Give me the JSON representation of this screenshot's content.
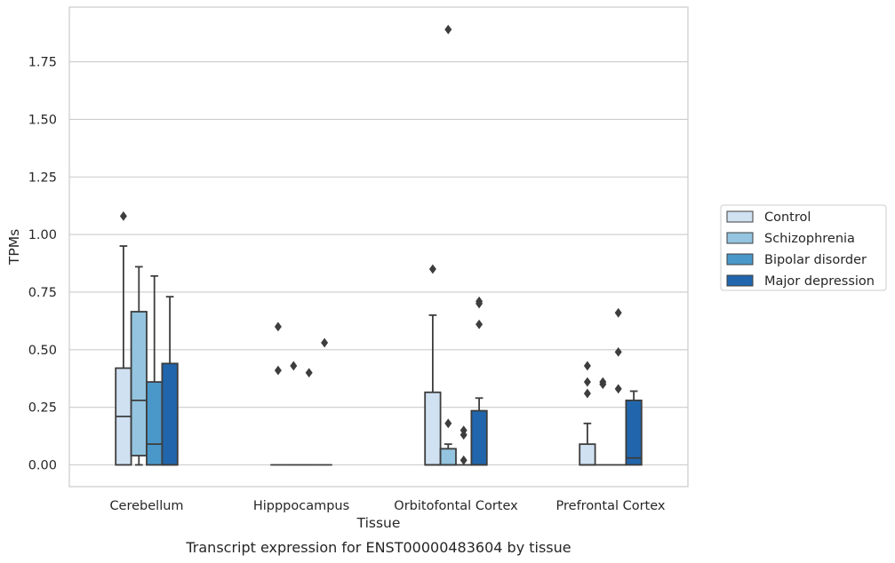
{
  "chart_data": {
    "type": "boxplot",
    "xlabel": "Tissue",
    "ylabel": "TPMs",
    "caption": "Transcript expression for ENST00000483604 by tissue",
    "ylim": [
      -0.09,
      1.98
    ],
    "yticks": [
      0.0,
      0.25,
      0.5,
      0.75,
      1.0,
      1.25,
      1.5,
      1.75
    ],
    "ytick_labels": [
      "0.00",
      "0.25",
      "0.50",
      "0.75",
      "1.00",
      "1.25",
      "1.50",
      "1.75"
    ],
    "grid": "horizontal",
    "legend_position": "right-outside",
    "categories": [
      "Cerebellum",
      "Hipppocampus",
      "Orbitofontal Cortex",
      "Prefrontal Cortex"
    ],
    "series": [
      {
        "name": "Control",
        "color": "#d0e1f2",
        "boxes": [
          {
            "whislo": 0.0,
            "q1": 0.0,
            "med": 0.21,
            "q3": 0.42,
            "whishi": 0.95,
            "fliers": [
              1.08
            ]
          },
          {
            "whislo": 0.0,
            "q1": 0.0,
            "med": 0.0,
            "q3": 0.0,
            "whishi": 0.0,
            "fliers": [
              0.6,
              0.41
            ]
          },
          {
            "whislo": 0.0,
            "q1": 0.0,
            "med": 0.0,
            "q3": 0.315,
            "whishi": 0.65,
            "fliers": [
              0.85
            ]
          },
          {
            "whislo": 0.0,
            "q1": 0.0,
            "med": 0.0,
            "q3": 0.09,
            "whishi": 0.18,
            "fliers": [
              0.43,
              0.36,
              0.31
            ]
          }
        ]
      },
      {
        "name": "Schizophrenia",
        "color": "#94c4df",
        "boxes": [
          {
            "whislo": 0.0,
            "q1": 0.04,
            "med": 0.28,
            "q3": 0.665,
            "whishi": 0.86,
            "fliers": []
          },
          {
            "whislo": 0.0,
            "q1": 0.0,
            "med": 0.0,
            "q3": 0.0,
            "whishi": 0.0,
            "fliers": [
              0.43
            ]
          },
          {
            "whislo": 0.0,
            "q1": 0.0,
            "med": 0.0,
            "q3": 0.07,
            "whishi": 0.09,
            "fliers": [
              1.89,
              0.18
            ]
          },
          {
            "whislo": 0.0,
            "q1": 0.0,
            "med": 0.0,
            "q3": 0.0,
            "whishi": 0.0,
            "fliers": [
              0.36,
              0.35
            ]
          }
        ]
      },
      {
        "name": "Bipolar disorder",
        "color": "#4a98c9",
        "boxes": [
          {
            "whislo": 0.0,
            "q1": 0.0,
            "med": 0.09,
            "q3": 0.36,
            "whishi": 0.82,
            "fliers": []
          },
          {
            "whislo": 0.0,
            "q1": 0.0,
            "med": 0.0,
            "q3": 0.0,
            "whishi": 0.0,
            "fliers": [
              0.4
            ]
          },
          {
            "whislo": 0.0,
            "q1": 0.0,
            "med": 0.0,
            "q3": 0.0,
            "whishi": 0.0,
            "fliers": [
              0.15,
              0.13,
              0.02
            ]
          },
          {
            "whislo": 0.0,
            "q1": 0.0,
            "med": 0.0,
            "q3": 0.0,
            "whishi": 0.0,
            "fliers": [
              0.66,
              0.49,
              0.33
            ]
          }
        ]
      },
      {
        "name": "Major depression",
        "color": "#2166ac",
        "boxes": [
          {
            "whislo": 0.0,
            "q1": 0.0,
            "med": 0.0,
            "q3": 0.44,
            "whishi": 0.73,
            "fliers": []
          },
          {
            "whislo": 0.0,
            "q1": 0.0,
            "med": 0.0,
            "q3": 0.0,
            "whishi": 0.0,
            "fliers": [
              0.53
            ]
          },
          {
            "whislo": 0.0,
            "q1": 0.0,
            "med": 0.0,
            "q3": 0.235,
            "whishi": 0.29,
            "fliers": [
              0.71,
              0.7,
              0.61
            ]
          },
          {
            "whislo": 0.0,
            "q1": 0.0,
            "med": 0.03,
            "q3": 0.28,
            "whishi": 0.32,
            "fliers": []
          }
        ]
      }
    ]
  }
}
